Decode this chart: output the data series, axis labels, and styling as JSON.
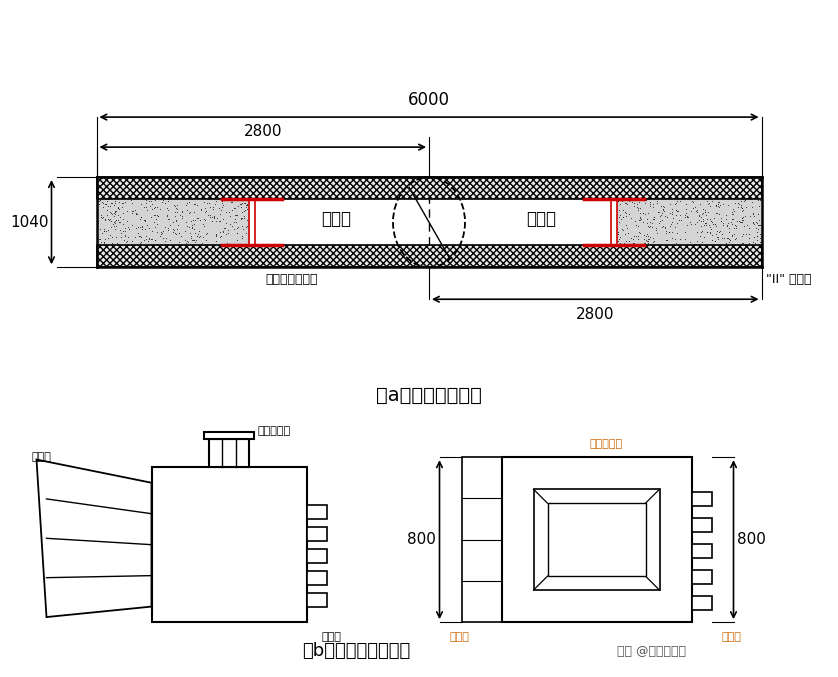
{
  "bg_color": "#ffffff",
  "title_a": "（a）槽段开挖示意",
  "title_b": "（b）接头清理器示意",
  "watermark": "头条 @建筑界一哥",
  "dim_6000": "6000",
  "dim_2800_top": "2800",
  "dim_2800_bot": "2800",
  "dim_1040": "1040",
  "dim_800_left": "800",
  "dim_800_right": "800",
  "label_slot1": "第一抓",
  "label_slot2": "第二抓",
  "label_guide": "旋挖机引先导孔",
  "label_joint": "\"II\" 型接头",
  "label_drill_l": "接钻杆接口",
  "label_drill_r": "接钻杆接口",
  "label_shovel_l": "铲板系",
  "label_brush_l": "刷壁系",
  "label_shovel_r": "铲板系",
  "label_brush_r": "刷壁系",
  "red_color": "#cc0000",
  "black_color": "#000000"
}
